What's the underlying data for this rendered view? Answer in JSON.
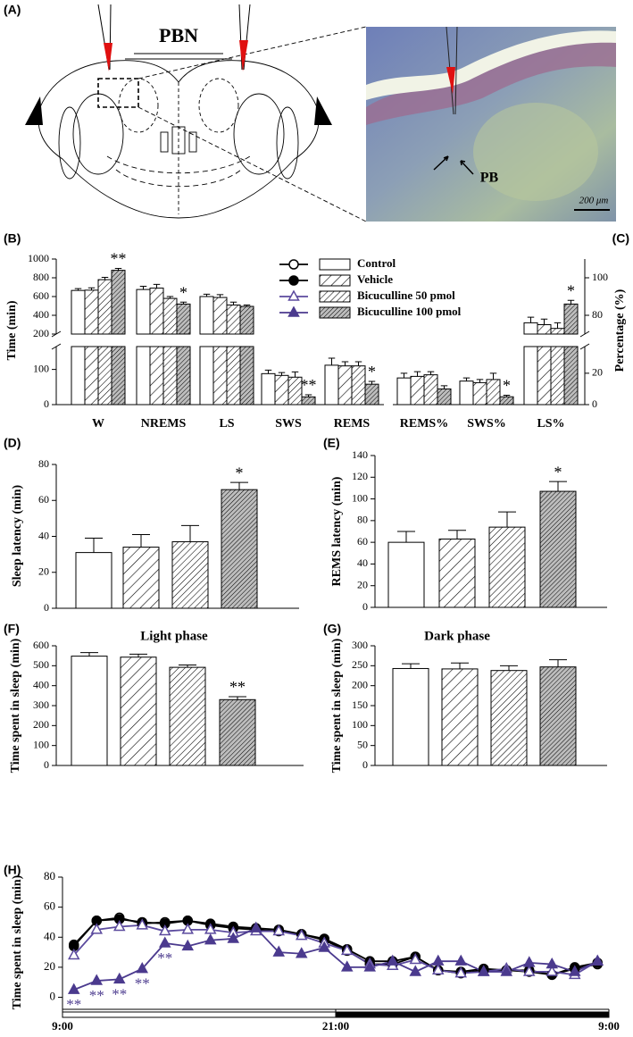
{
  "panel_labels": [
    "(A)",
    "(B)",
    "(C)",
    "(D)",
    "(E)",
    "(F)",
    "(G)",
    "(H)"
  ],
  "panel_a": {
    "title": "PBN",
    "region": "PB",
    "scale_bar": "200 μm"
  },
  "chart_data": [
    {
      "type": "bar",
      "ylabel": "Time (min)",
      "categories": [
        "W",
        "NREMS",
        "LS",
        "SWS",
        "REMS"
      ],
      "ylim": [
        0,
        1000
      ],
      "axis_break": [
        165,
        200
      ],
      "yticks": [
        0,
        100,
        200,
        400,
        600,
        800,
        1000
      ],
      "y_axis_side": "left",
      "series": [
        {
          "name": "Control",
          "pattern": "none",
          "values": [
            665,
            675,
            600,
            88,
            112
          ],
          "errors": [
            20,
            35,
            25,
            10,
            20
          ]
        },
        {
          "name": "Vehicle",
          "pattern": "wide",
          "values": [
            668,
            690,
            590,
            83,
            110
          ],
          "errors": [
            25,
            40,
            30,
            8,
            12
          ]
        },
        {
          "name": "Bicuculline 50 pmol",
          "pattern": "narrow",
          "values": [
            780,
            580,
            510,
            78,
            110
          ],
          "errors": [
            25,
            20,
            30,
            15,
            12
          ]
        },
        {
          "name": "Bicuculline 100 pmol",
          "pattern": "dense",
          "values": [
            880,
            520,
            495,
            22,
            58
          ],
          "errors": [
            20,
            20,
            15,
            6,
            8
          ]
        }
      ],
      "annotations": [
        {
          "text": "**",
          "series": 3,
          "index": 0
        },
        {
          "text": "*",
          "series": 3,
          "index": 1
        },
        {
          "text": "**",
          "series": 3,
          "index": 3
        },
        {
          "text": "*",
          "series": 3,
          "index": 4
        }
      ]
    },
    {
      "type": "bar",
      "ylabel": "Percentage (%)",
      "categories": [
        "REMS%",
        "SWS%",
        "LS%"
      ],
      "ylim": [
        0,
        110
      ],
      "axis_break": [
        37,
        70
      ],
      "yticks": [
        0,
        20,
        80,
        100
      ],
      "y_axis_side": "right",
      "series": [
        {
          "pattern": "none",
          "values": [
            17,
            15,
            76
          ],
          "errors": [
            3,
            2,
            3
          ]
        },
        {
          "pattern": "wide",
          "values": [
            18,
            14,
            75
          ],
          "errors": [
            3,
            2,
            3
          ]
        },
        {
          "pattern": "narrow",
          "values": [
            19,
            16,
            73
          ],
          "errors": [
            2,
            4,
            3
          ]
        },
        {
          "pattern": "dense",
          "values": [
            10,
            5,
            86
          ],
          "errors": [
            2,
            1,
            2
          ]
        }
      ],
      "annotations": [
        {
          "text": "*",
          "series": 3,
          "index": 1
        },
        {
          "text": "*",
          "series": 3,
          "index": 2
        }
      ]
    },
    {
      "type": "bar",
      "ylabel": "Sleep latency (min)",
      "values": [
        31,
        34,
        37,
        66
      ],
      "errors": [
        8,
        7,
        9,
        4
      ],
      "patterns": [
        "none",
        "wide",
        "narrow",
        "dense"
      ],
      "ylim": [
        0,
        80
      ],
      "yticks": [
        0,
        20,
        40,
        60,
        80
      ],
      "annotations": [
        {
          "text": "*",
          "index": 3
        }
      ]
    },
    {
      "type": "bar",
      "ylabel": "REMS latency (min)",
      "values": [
        60,
        63,
        74,
        107
      ],
      "errors": [
        10,
        8,
        14,
        9
      ],
      "patterns": [
        "none",
        "wide",
        "narrow",
        "dense"
      ],
      "ylim": [
        0,
        140
      ],
      "yticks": [
        0,
        20,
        40,
        60,
        80,
        100,
        120,
        140
      ],
      "annotations": [
        {
          "text": "*",
          "index": 3
        }
      ]
    },
    {
      "type": "bar",
      "title": "Light phase",
      "ylabel": "Time spent in sleep (min)",
      "values": [
        548,
        543,
        492,
        330
      ],
      "errors": [
        18,
        15,
        12,
        15
      ],
      "patterns": [
        "none",
        "wide",
        "narrow",
        "dense"
      ],
      "ylim": [
        0,
        600
      ],
      "yticks": [
        0,
        100,
        200,
        300,
        400,
        500,
        600
      ],
      "annotations": [
        {
          "text": "**",
          "index": 3
        }
      ]
    },
    {
      "type": "bar",
      "title": "Dark phase",
      "ylabel": "Time spent in sleep (min)",
      "values": [
        243,
        242,
        238,
        247
      ],
      "errors": [
        12,
        15,
        12,
        18
      ],
      "patterns": [
        "none",
        "wide",
        "narrow",
        "dense"
      ],
      "ylim": [
        0,
        300
      ],
      "yticks": [
        0,
        50,
        100,
        150,
        200,
        250,
        300
      ],
      "annotations": []
    },
    {
      "type": "line",
      "ylabel": "Time spent in sleep (min)",
      "x": [
        0.5,
        1.5,
        2.5,
        3.5,
        4.5,
        5.5,
        6.5,
        7.5,
        8.5,
        9.5,
        10.5,
        11.5,
        12.5,
        13.5,
        14.5,
        15.5,
        16.5,
        17.5,
        18.5,
        19.5,
        20.5,
        21.5,
        22.5,
        23.5
      ],
      "xlim": [
        0,
        24
      ],
      "xticks": [
        {
          "value": 0,
          "label": "9:00"
        },
        {
          "value": 12,
          "label": "21:00"
        },
        {
          "value": 24,
          "label": "9:00"
        }
      ],
      "ylim": [
        -8,
        80
      ],
      "yticks": [
        0,
        20,
        40,
        60,
        80
      ],
      "series": [
        {
          "color": "#000000",
          "marker": "circle-open",
          "values": [
            34,
            51,
            53,
            49,
            50,
            51,
            48,
            46,
            45,
            44,
            42,
            38,
            31,
            22,
            22,
            27,
            18,
            16,
            18,
            18,
            17,
            15,
            19,
            22
          ]
        },
        {
          "color": "#000000",
          "marker": "circle",
          "values": [
            35,
            51,
            52,
            50,
            49,
            51,
            49,
            47,
            46,
            45,
            42,
            39,
            32,
            24,
            24,
            27,
            18,
            17,
            19,
            18,
            18,
            15,
            20,
            23
          ]
        },
        {
          "color": "#5b4a9e",
          "marker": "triangle-open",
          "values": [
            28,
            45,
            47,
            48,
            44,
            45,
            45,
            43,
            44,
            44,
            41,
            36,
            31,
            22,
            21,
            25,
            18,
            16,
            17,
            19,
            17,
            17,
            15,
            24
          ]
        },
        {
          "color": "#4b3a8e",
          "marker": "triangle",
          "values": [
            5,
            11,
            12,
            19,
            36,
            34,
            38,
            39,
            46,
            30,
            29,
            33,
            20,
            20,
            24,
            17,
            24,
            24,
            17,
            17,
            23,
            22,
            17,
            24
          ]
        }
      ],
      "annotations": [
        {
          "text": "**",
          "series": 3,
          "index": 0
        },
        {
          "text": "**",
          "series": 3,
          "index": 1
        },
        {
          "text": "**",
          "series": 3,
          "index": 2
        },
        {
          "text": "**",
          "series": 3,
          "index": 3
        },
        {
          "text": "**",
          "series": 3,
          "index": 4
        }
      ]
    }
  ]
}
